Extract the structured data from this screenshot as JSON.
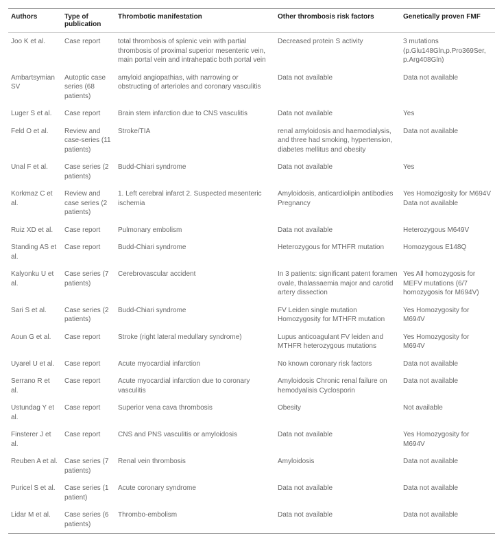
{
  "headers": {
    "authors": "Authors",
    "type": "Type of publication",
    "thrombotic": "Thrombotic manifestation",
    "other": "Other thrombosis risk factors",
    "genetic": "Genetically proven FMF"
  },
  "rows": [
    {
      "authors": "Joo K et al.",
      "type": "Case report",
      "thrombotic": "total thrombosis of splenic vein with partial thrombosis of proximal superior mesenteric vein, main portal vein and intrahepatic both portal vein",
      "other": "Decreased protein S activity",
      "genetic": "3 mutations (p.Glu148Gln,p.Pro369Ser, p.Arg408Gln)"
    },
    {
      "authors": "Ambartsymian SV",
      "type": "Autoptic case series (68 patients)",
      "thrombotic": "amyloid angiopathias, with narrowing or obstructing of arterioles and coronary vasculitis",
      "other": "Data not available",
      "genetic": "Data not available"
    },
    {
      "authors": "Luger S et al.",
      "type": "Case report",
      "thrombotic": "Brain stem infarction due to CNS vasculitis",
      "other": "Data not available",
      "genetic": "Yes"
    },
    {
      "authors": "Feld O et al.",
      "type": "Review and case-series (11 patients)",
      "thrombotic": "Stroke/TIA",
      "other": "renal amyloidosis and haemodialysis, and three had smoking, hypertension, diabetes mellitus and obesity",
      "genetic": "Data not available"
    },
    {
      "authors": "Unal F et al.",
      "type": "Case series (2 patients)",
      "thrombotic": "Budd-Chiari syndrome",
      "other": "Data not available",
      "genetic": "Yes"
    },
    {
      "authors": "Korkmaz C et al.",
      "type": "Review and case series (2 patients)",
      "thrombotic": "1. Left cerebral infarct 2. Suspected mesenteric ischemia",
      "other": "Amyloidosis, anticardiolipin antibodies Pregnancy",
      "genetic": "Yes Homozigosity for M694V Data not available"
    },
    {
      "authors": "Ruiz XD et al.",
      "type": "Case report",
      "thrombotic": "Pulmonary embolism",
      "other": "Data not available",
      "genetic": "Heterozygous M649V"
    },
    {
      "authors": "Standing AS et al.",
      "type": "Case report",
      "thrombotic": "Budd-Chiari syndrome",
      "other": "Heterozygous for MTHFR mutation",
      "genetic": "Homozygous E148Q"
    },
    {
      "authors": "Kalyonku U et al.",
      "type": "Case series (7 patients)",
      "thrombotic": "Cerebrovascular accident",
      "other": "In 3 patients: significant patent foramen ovale, thalassaemia major and carotid artery dissection",
      "genetic": "Yes All homozygosis for MEFV mutations (6/7 homozygosis for M694V)"
    },
    {
      "authors": "Sari S et al.",
      "type": "Case series (2 patients)",
      "thrombotic": "Budd-Chiari syndrome",
      "other": "FV Leiden single mutation Homozygosity for MTHFR mutation",
      "genetic": "Yes Homozygosity for M694V"
    },
    {
      "authors": "Aoun G et al.",
      "type": "Case report",
      "thrombotic": "Stroke (right lateral medullary syndrome)",
      "other": "Lupus anticoagulant FV leiden and MTHFR heterozygous mutations",
      "genetic": "Yes Homozygosity for M694V"
    },
    {
      "authors": "Uyarel U et al.",
      "type": "Case report",
      "thrombotic": "Acute myocardial infarction",
      "other": "No known coronary risk factors",
      "genetic": "Data not available"
    },
    {
      "authors": "Serrano R et al.",
      "type": "Case report",
      "thrombotic": "Acute myocardial infarction due to coronary vasculitis",
      "other": "Amyloidosis Chronic renal failure on hemodyalisis Cyclosporin",
      "genetic": "Data not available"
    },
    {
      "authors": "Ustundag Y et al.",
      "type": "Case report",
      "thrombotic": "Superior vena cava thrombosis",
      "other": "Obesity",
      "genetic": "Not available"
    },
    {
      "authors": "Finsterer J et al.",
      "type": "Case report",
      "thrombotic": "CNS and PNS vasculitis or amyloidosis",
      "other": "Data not available",
      "genetic": "Yes Homozygosity for M694V"
    },
    {
      "authors": "Reuben A et al.",
      "type": "Case series (7 patients)",
      "thrombotic": "Renal vein thrombosis",
      "other": "Amyloidosis",
      "genetic": "Data not available"
    },
    {
      "authors": "Puricel S et al.",
      "type": "Case series (1 patient)",
      "thrombotic": "Acute coronary syndrome",
      "other": "Data not available",
      "genetic": "Data not available"
    },
    {
      "authors": "Lidar M et al.",
      "type": "Case series (6 patients)",
      "thrombotic": "Thrombo-embolism",
      "other": "Data not available",
      "genetic": "Data not available"
    }
  ]
}
